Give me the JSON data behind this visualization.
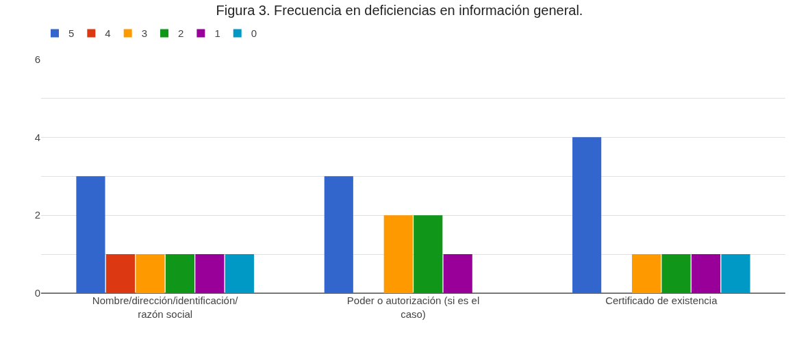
{
  "chart_data": {
    "type": "bar",
    "title": "Figura 3. Frecuencia en deficiencias en información general.",
    "categories": [
      "Nombre/dirección/identificación/razón social",
      "Poder o autorización (si es el caso)",
      "Certificado de existencia"
    ],
    "series": [
      {
        "name": "5",
        "color": "#3366cc",
        "values": [
          3,
          3,
          4
        ]
      },
      {
        "name": "4",
        "color": "#dc3912",
        "values": [
          1,
          0,
          0
        ]
      },
      {
        "name": "3",
        "color": "#ff9900",
        "values": [
          1,
          2,
          1
        ]
      },
      {
        "name": "2",
        "color": "#109618",
        "values": [
          1,
          2,
          1
        ]
      },
      {
        "name": "1",
        "color": "#990099",
        "values": [
          1,
          1,
          1
        ]
      },
      {
        "name": "0",
        "color": "#0099c6",
        "values": [
          1,
          0,
          1
        ]
      }
    ],
    "ylim": [
      0,
      6
    ],
    "yticks": [
      0,
      {
        "value": 1,
        "label": null
      },
      2,
      {
        "value": 3,
        "label": null
      },
      4,
      {
        "value": 5,
        "label": null
      },
      6
    ],
    "grid": "y",
    "legend": "top left"
  }
}
